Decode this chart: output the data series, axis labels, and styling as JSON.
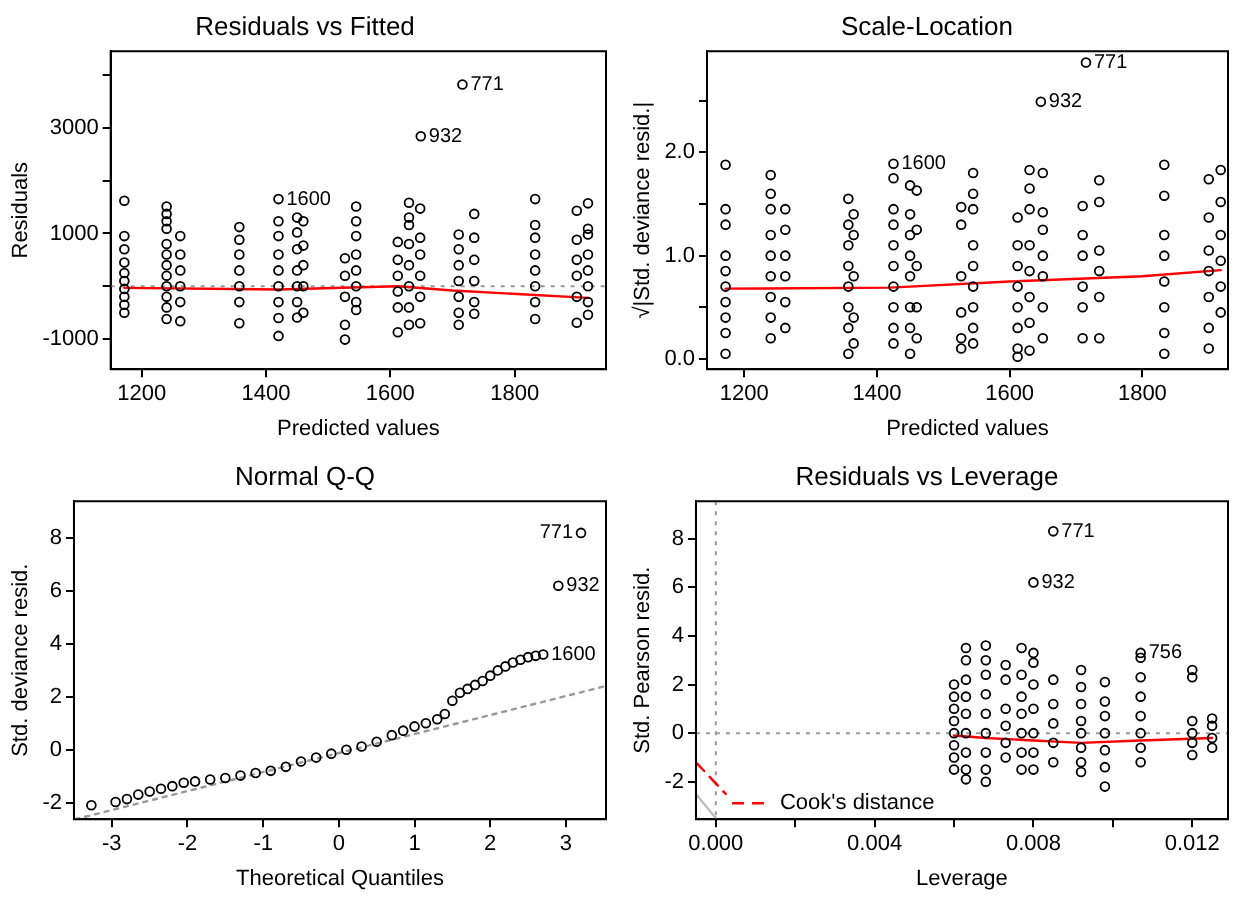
{
  "chart_data": [
    {
      "type": "scatter",
      "title": "Residuals vs Fitted",
      "xlabel": "Predicted values",
      "ylabel": "Residuals",
      "marker": "circle",
      "xlim": [
        1150,
        1947
      ],
      "ylim": [
        -1570,
        4450
      ],
      "xticks": [
        1200,
        1400,
        1600,
        1800
      ],
      "yticks": [
        {
          "value": -1000,
          "label": "-1000"
        },
        {
          "value": 0,
          "label": null
        },
        1000,
        {
          "value": 2000,
          "label": null
        },
        3000,
        {
          "value": 4000,
          "label": null
        }
      ],
      "series": [
        {
          "color": "#000000",
          "x": [
            1172,
            1172,
            1172,
            1172,
            1172,
            1172,
            1172,
            1172,
            1172,
            1172,
            1240,
            1240,
            1240,
            1240,
            1240,
            1240,
            1240,
            1240,
            1240,
            1240,
            1240,
            1240,
            1262,
            1262,
            1262,
            1262,
            1262,
            1262,
            1357,
            1357,
            1357,
            1357,
            1357,
            1357,
            1357,
            1420,
            1420,
            1420,
            1420,
            1420,
            1420,
            1420,
            1420,
            1420,
            1450,
            1450,
            1450,
            1450,
            1450,
            1450,
            1450,
            1460,
            1460,
            1460,
            1460,
            1460,
            1527,
            1527,
            1527,
            1527,
            1527,
            1545,
            1545,
            1545,
            1545,
            1545,
            1545,
            1545,
            1545,
            1612,
            1612,
            1612,
            1612,
            1612,
            1612,
            1630,
            1630,
            1630,
            1630,
            1630,
            1630,
            1630,
            1630,
            1649,
            1648,
            1648,
            1648,
            1648,
            1648,
            1648,
            1710,
            1710,
            1710,
            1710,
            1710,
            1710,
            1710,
            1716,
            1735,
            1735,
            1735,
            1735,
            1735,
            1735,
            1833,
            1833,
            1833,
            1833,
            1833,
            1833,
            1833,
            1833,
            1900,
            1900,
            1900,
            1900,
            1900,
            1900,
            1918,
            1918,
            1918,
            1918,
            1918,
            1918,
            1918,
            1918
          ],
          "values": [
            1620,
            950,
            700,
            450,
            250,
            100,
            -50,
            -200,
            -350,
            -500,
            1510,
            1370,
            1230,
            1090,
            800,
            600,
            400,
            200,
            0,
            -200,
            -400,
            -620,
            950,
            600,
            300,
            0,
            -300,
            -660,
            1120,
            880,
            600,
            300,
            0,
            -300,
            -700,
            1650,
            1230,
            950,
            600,
            300,
            0,
            -300,
            -600,
            -940,
            1300,
            1020,
            700,
            300,
            0,
            -300,
            -590,
            1230,
            770,
            400,
            0,
            -500,
            530,
            200,
            -200,
            -730,
            -1010,
            1510,
            1230,
            950,
            600,
            300,
            0,
            -300,
            -450,
            840,
            500,
            200,
            -100,
            -400,
            -870,
            1580,
            1300,
            1160,
            800,
            400,
            0,
            -400,
            -730,
            2840,
            1470,
            920,
            600,
            200,
            -200,
            -700,
            980,
            700,
            400,
            100,
            -200,
            -500,
            -730,
            3820,
            1370,
            920,
            500,
            100,
            -300,
            -520,
            1650,
            1160,
            920,
            600,
            300,
            0,
            -300,
            -620,
            1430,
            880,
            500,
            200,
            -200,
            -690,
            1570,
            1090,
            980,
            600,
            300,
            0,
            -300,
            -540
          ]
        },
        {
          "type": "line",
          "marker": "none",
          "color": "#ff0000",
          "x": [
            1172,
            1420,
            1612,
            1700,
            1918
          ],
          "values": [
            -30,
            -60,
            0,
            -80,
            -220
          ]
        }
      ],
      "ref_lines": [
        {
          "axis": "y",
          "value": 0,
          "color": "#999999",
          "line_style": "dotted"
        }
      ],
      "annotations": [
        {
          "text": "771",
          "x": 1716,
          "y": 3820
        },
        {
          "text": "932",
          "x": 1649,
          "y": 2840
        },
        {
          "text": "1600",
          "x": 1420,
          "y": 1650
        }
      ]
    },
    {
      "type": "scatter",
      "title": "Scale-Location",
      "xlabel": "Predicted values",
      "ylabel": "√|Std. deviance resid.|",
      "marker": "circle",
      "xlim": [
        1144,
        1929
      ],
      "ylim": [
        -0.1,
        2.98
      ],
      "xticks": [
        1200,
        1400,
        1600,
        1800
      ],
      "yticks": [
        {
          "value": 0,
          "label": "0.0"
        },
        {
          "value": 0.5,
          "label": null
        },
        {
          "value": 1,
          "label": "1.0"
        },
        {
          "value": 1.5,
          "label": null
        },
        {
          "value": 2,
          "label": "2.0"
        },
        {
          "value": 2.5,
          "label": null
        }
      ],
      "series": [
        {
          "color": "#000000",
          "x": [
            1172,
            1172,
            1172,
            1172,
            1172,
            1172,
            1172,
            1172,
            1172,
            1172,
            1240,
            1240,
            1240,
            1240,
            1240,
            1240,
            1240,
            1240,
            1240,
            1262,
            1262,
            1262,
            1262,
            1262,
            1262,
            1357,
            1357,
            1357,
            1357,
            1357,
            1357,
            1357,
            1357,
            1365,
            1365,
            1365,
            1365,
            1365,
            1425,
            1425,
            1425,
            1425,
            1425,
            1425,
            1425,
            1425,
            1425,
            1425,
            1450,
            1450,
            1450,
            1450,
            1450,
            1450,
            1450,
            1450,
            1460,
            1460,
            1460,
            1460,
            1460,
            1527,
            1527,
            1527,
            1527,
            1527,
            1527,
            1545,
            1545,
            1545,
            1545,
            1545,
            1545,
            1545,
            1545,
            1545,
            1612,
            1612,
            1612,
            1612,
            1612,
            1612,
            1612,
            1612,
            1630,
            1630,
            1630,
            1630,
            1630,
            1630,
            1630,
            1630,
            1647,
            1650,
            1650,
            1650,
            1650,
            1650,
            1650,
            1650,
            1710,
            1710,
            1710,
            1710,
            1710,
            1710,
            1715,
            1735,
            1735,
            1735,
            1735,
            1735,
            1735,
            1833,
            1833,
            1833,
            1833,
            1833,
            1833,
            1833,
            1833,
            1900,
            1900,
            1900,
            1900,
            1900,
            1900,
            1900,
            1918,
            1918,
            1918,
            1918,
            1918,
            1918
          ],
          "values": [
            1.88,
            1.45,
            1.3,
            1.0,
            0.85,
            0.7,
            0.55,
            0.4,
            0.25,
            0.05,
            1.78,
            1.6,
            1.45,
            1.2,
            1.0,
            0.8,
            0.6,
            0.4,
            0.2,
            1.45,
            1.25,
            1.0,
            0.8,
            0.55,
            0.3,
            1.55,
            1.3,
            1.1,
            0.9,
            0.7,
            0.5,
            0.3,
            0.05,
            1.4,
            1.2,
            0.8,
            0.4,
            0.15,
            1.89,
            1.75,
            1.45,
            1.3,
            1.1,
            0.9,
            0.7,
            0.5,
            0.3,
            0.15,
            1.68,
            1.4,
            1.2,
            1.0,
            0.8,
            0.5,
            0.3,
            0.05,
            1.63,
            1.25,
            0.9,
            0.5,
            0.2,
            1.47,
            1.3,
            0.8,
            0.45,
            0.2,
            0.1,
            1.8,
            1.6,
            1.45,
            1.1,
            0.9,
            0.7,
            0.5,
            0.3,
            0.15,
            1.37,
            1.1,
            0.9,
            0.7,
            0.5,
            0.3,
            0.1,
            0.02,
            1.83,
            1.65,
            1.45,
            1.1,
            0.85,
            0.6,
            0.35,
            0.08,
            2.49,
            1.8,
            1.42,
            1.25,
            1.0,
            0.8,
            0.5,
            0.2,
            1.48,
            1.2,
            1.0,
            0.7,
            0.5,
            0.2,
            2.87,
            1.73,
            1.52,
            1.05,
            0.85,
            0.6,
            0.2,
            1.88,
            1.58,
            1.2,
            1.0,
            0.75,
            0.5,
            0.25,
            0.05,
            1.74,
            1.37,
            1.05,
            0.85,
            0.6,
            0.3,
            0.1,
            1.83,
            1.52,
            1.2,
            0.95,
            0.7,
            0.45
          ]
        },
        {
          "type": "line",
          "marker": "none",
          "color": "#ff0000",
          "x": [
            1172,
            1420,
            1600,
            1800,
            1918
          ],
          "values": [
            0.68,
            0.69,
            0.75,
            0.8,
            0.86
          ]
        }
      ],
      "annotations": [
        {
          "text": "771",
          "x": 1715,
          "y": 2.87
        },
        {
          "text": "932",
          "x": 1647,
          "y": 2.49
        },
        {
          "text": "1600",
          "x": 1425,
          "y": 1.89
        }
      ]
    },
    {
      "type": "scatter",
      "title": "Normal Q-Q",
      "xlabel": "Theoretical Quantiles",
      "ylabel": "Std. deviance resid.",
      "marker": "circle",
      "xlim": [
        -3.5,
        3.53
      ],
      "ylim": [
        -2.63,
        9.4
      ],
      "xticks": [
        -3,
        -2,
        -1,
        0,
        1,
        2,
        3
      ],
      "yticks": [
        -2,
        0,
        2,
        4,
        6,
        8
      ],
      "series": [
        {
          "color": "#000000",
          "x": [
            -3.27,
            -2.95,
            -2.8,
            -2.65,
            -2.5,
            -2.35,
            -2.2,
            -2.05,
            -1.9,
            -1.7,
            -1.5,
            -1.3,
            -1.1,
            -0.9,
            -0.7,
            -0.5,
            -0.3,
            -0.1,
            0.1,
            0.3,
            0.5,
            0.7,
            0.85,
            1.0,
            1.15,
            1.3,
            1.4,
            1.5,
            1.6,
            1.7,
            1.8,
            1.9,
            2.0,
            2.1,
            2.2,
            2.3,
            2.4,
            2.5,
            2.6,
            2.7,
            2.9,
            3.2
          ],
          "values": [
            -2.1,
            -1.98,
            -1.87,
            -1.7,
            -1.58,
            -1.48,
            -1.38,
            -1.25,
            -1.2,
            -1.13,
            -1.07,
            -0.98,
            -0.88,
            -0.8,
            -0.65,
            -0.45,
            -0.3,
            -0.15,
            0.0,
            0.12,
            0.3,
            0.55,
            0.72,
            0.88,
            1.0,
            1.15,
            1.35,
            1.85,
            2.15,
            2.3,
            2.45,
            2.6,
            2.8,
            3.0,
            3.15,
            3.3,
            3.4,
            3.5,
            3.55,
            3.6,
            6.2,
            8.2
          ]
        },
        {
          "type": "line",
          "marker": "none",
          "color": "#999999",
          "line_style": "dotted",
          "x": [
            -3.48,
            3.53
          ],
          "values": [
            -2.63,
            2.41
          ]
        }
      ],
      "annotations": [
        {
          "text": "771",
          "x": 3.2,
          "y": 8.2
        },
        {
          "text": "932",
          "x": 2.9,
          "y": 6.2
        },
        {
          "text": "1600",
          "x": 2.7,
          "y": 3.6
        }
      ]
    },
    {
      "type": "scatter",
      "title": "Residuals vs Leverage",
      "xlabel": "Leverage",
      "ylabel": "Std. Pearson resid.",
      "marker": "circle",
      "legend": "bottom left",
      "xlim": [
        -0.0005,
        0.0129
      ],
      "ylim": [
        -3.54,
        9.54
      ],
      "xticks": [
        {
          "value": 0,
          "label": "0.000"
        },
        {
          "value": 0.002,
          "label": null
        },
        {
          "value": 0.004,
          "label": "0.004"
        },
        {
          "value": 0.006,
          "label": null
        },
        {
          "value": 0.008,
          "label": "0.008"
        },
        {
          "value": 0.01,
          "label": null
        },
        {
          "value": 0.012,
          "label": "0.012"
        }
      ],
      "yticks": [
        -2,
        0,
        2,
        4,
        6,
        8
      ],
      "series": [
        {
          "color": "#000000",
          "x": [
            0.006,
            0.006,
            0.006,
            0.006,
            0.006,
            0.006,
            0.006,
            0.006,
            0.0063,
            0.0063,
            0.0063,
            0.0063,
            0.0063,
            0.0063,
            0.0063,
            0.0063,
            0.0063,
            0.0068,
            0.0068,
            0.0068,
            0.0068,
            0.0068,
            0.0068,
            0.0068,
            0.0068,
            0.0068,
            0.0073,
            0.0073,
            0.0073,
            0.0073,
            0.0073,
            0.0073,
            0.0077,
            0.0077,
            0.0077,
            0.0077,
            0.0077,
            0.0077,
            0.0077,
            0.008,
            0.008,
            0.008,
            0.008,
            0.008,
            0.008,
            0.008,
            0.008,
            0.0085,
            0.0085,
            0.0085,
            0.0085,
            0.0085,
            0.0085,
            0.0092,
            0.0092,
            0.0092,
            0.0092,
            0.0092,
            0.0092,
            0.0092,
            0.0092,
            0.0098,
            0.0098,
            0.0098,
            0.0098,
            0.0098,
            0.0098,
            0.0098,
            0.0107,
            0.0107,
            0.0107,
            0.0107,
            0.0107,
            0.0107,
            0.0107,
            0.0107,
            0.012,
            0.012,
            0.012,
            0.012,
            0.012,
            0.012,
            0.0125,
            0.0125,
            0.0125,
            0.0125
          ],
          "values": [
            2.0,
            1.5,
            1.0,
            0.5,
            0,
            -0.5,
            -1.0,
            -1.5,
            3.5,
            3.0,
            2.2,
            1.5,
            0.8,
            0,
            -0.8,
            -1.5,
            -1.9,
            3.6,
            3.0,
            2.4,
            1.6,
            0.8,
            0,
            -0.8,
            -1.5,
            -2.0,
            2.8,
            2.2,
            1.0,
            0.3,
            -0.4,
            -1.0,
            3.5,
            2.4,
            1.5,
            0.8,
            0,
            -0.8,
            -1.5,
            6.2,
            3.3,
            2.9,
            2.0,
            1.0,
            0,
            -0.8,
            -1.5,
            8.3,
            2.2,
            1.2,
            0.4,
            -0.4,
            -1.2,
            2.6,
            1.9,
            1.2,
            0.5,
            0,
            -0.6,
            -1.2,
            -1.6,
            2.1,
            1.3,
            0.7,
            0,
            -0.7,
            -1.4,
            -2.2,
            3.3,
            3.1,
            2.3,
            1.5,
            0.7,
            0,
            -0.6,
            -1.2,
            2.6,
            2.3,
            0.5,
            0,
            -0.4,
            -0.9,
            0.6,
            0.3,
            -0.2,
            -0.6
          ]
        },
        {
          "type": "line",
          "marker": "none",
          "color": "#ff0000",
          "x": [
            0.006,
            0.0068,
            0.008,
            0.0092,
            0.0107,
            0.0125
          ],
          "values": [
            -0.1,
            -0.2,
            -0.3,
            -0.4,
            -0.3,
            -0.2
          ]
        },
        {
          "type": "line",
          "marker": "none",
          "name": "Cook's distance",
          "color": "#ff0000",
          "line_style": "dashed",
          "x": [
            -0.0005,
            0.00025
          ],
          "values": [
            -1.2,
            -2.5
          ]
        },
        {
          "type": "line",
          "marker": "none",
          "color": "#bebebe",
          "x": [
            -0.0005,
            0
          ],
          "values": [
            -2.5,
            -3.5
          ]
        }
      ],
      "ref_lines": [
        {
          "axis": "y",
          "value": 0,
          "color": "#999999",
          "line_style": "dotted"
        },
        {
          "axis": "x",
          "value": 0,
          "color": "#999999",
          "line_style": "dotted"
        }
      ],
      "annotations": [
        {
          "text": "771",
          "x": 0.0085,
          "y": 8.3
        },
        {
          "text": "932",
          "x": 0.008,
          "y": 6.2
        },
        {
          "text": "756",
          "x": 0.0107,
          "y": 3.3
        }
      ]
    }
  ]
}
